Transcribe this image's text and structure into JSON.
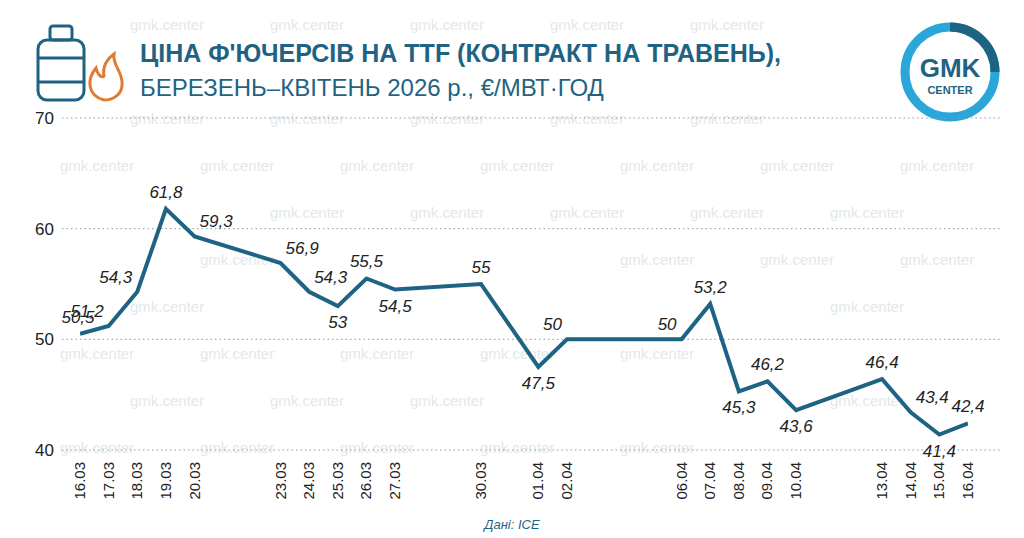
{
  "chart_data": {
    "type": "line",
    "title": "ЦІНА Ф'ЮЧЕРСІВ НА TTF (КОНТРАКТ НА ТРАВЕНЬ),",
    "subtitle": "БЕРЕЗЕНЬ–КВІТЕНЬ 2026 р., €/МВТ·ГОД",
    "source": "Дані: ICE",
    "logo": [
      "GMK",
      "CENTER"
    ],
    "watermark": "gmk.center",
    "x": [
      "16.03",
      "17.03",
      "18.03",
      "19.03",
      "20.03",
      "23.03",
      "24.03",
      "25.03",
      "26.03",
      "27.03",
      "30.03",
      "01.04",
      "02.04",
      "06.04",
      "07.04",
      "08.04",
      "09.04",
      "10.04",
      "13.04",
      "14.04",
      "15.04",
      "16.04"
    ],
    "values": [
      50.5,
      51.2,
      54.3,
      61.8,
      59.3,
      56.9,
      54.3,
      53,
      55.5,
      54.5,
      55,
      47.5,
      50,
      50,
      53.2,
      45.3,
      46.2,
      43.6,
      46.4,
      43.4,
      41.4,
      42.4
    ],
    "value_labels": [
      "50,5",
      "51,2",
      "54,3",
      "61,8",
      "59,3",
      "56,9",
      "54,3",
      "53",
      "55,5",
      "54,5",
      "55",
      "47,5",
      "50",
      "50",
      "53,2",
      "45,3",
      "46,2",
      "43,6",
      "46,4",
      "43,4",
      "41,4",
      "42,4"
    ],
    "color": "#1f6384",
    "xlim": [
      "16.03",
      "16.04"
    ],
    "ylim": [
      40,
      70
    ],
    "yticks": [
      40,
      50,
      60,
      70
    ],
    "grid": true,
    "data_labels": true
  }
}
